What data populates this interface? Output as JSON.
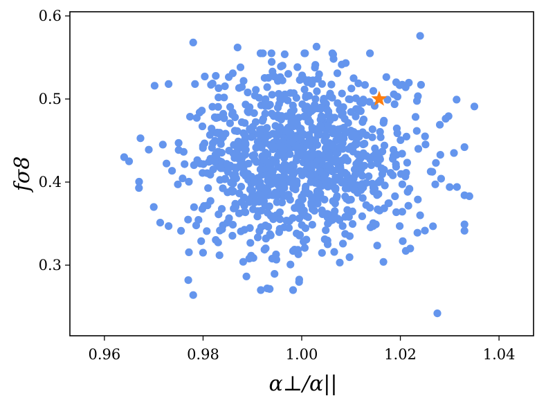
{
  "chart_data": {
    "type": "scatter",
    "title": "",
    "xlabel": "α⊥/α||",
    "ylabel": "fσ8",
    "xlim": [
      0.953,
      1.047
    ],
    "ylim": [
      0.215,
      0.605
    ],
    "xticks": [
      0.96,
      0.98,
      1.0,
      1.02,
      1.04
    ],
    "xtick_labels": [
      "0.96",
      "0.98",
      "1.00",
      "1.02",
      "1.04"
    ],
    "yticks": [
      0.3,
      0.4,
      0.5,
      0.6
    ],
    "ytick_labels": [
      "0.3",
      "0.4",
      "0.5",
      "0.6"
    ],
    "grid": false,
    "legend": "none",
    "point_color": "#6495ed",
    "marker_color": "#ff7f0e",
    "cloud": {
      "n": 1000,
      "x_mean": 1.0,
      "x_std": 0.0115,
      "y_mean": 0.425,
      "y_std": 0.055,
      "seed": 7
    },
    "outliers": [
      {
        "x": 1.024,
        "y": 0.576
      },
      {
        "x": 0.978,
        "y": 0.568
      },
      {
        "x": 1.003,
        "y": 0.563
      },
      {
        "x": 0.987,
        "y": 0.562
      },
      {
        "x": 1.035,
        "y": 0.491
      },
      {
        "x": 0.964,
        "y": 0.43
      },
      {
        "x": 0.965,
        "y": 0.425
      },
      {
        "x": 1.03,
        "y": 0.394
      },
      {
        "x": 1.034,
        "y": 0.383
      },
      {
        "x": 1.028,
        "y": 0.469
      },
      {
        "x": 1.025,
        "y": 0.455
      },
      {
        "x": 0.969,
        "y": 0.439
      },
      {
        "x": 0.973,
        "y": 0.518
      },
      {
        "x": 0.977,
        "y": 0.282
      },
      {
        "x": 0.978,
        "y": 0.264
      },
      {
        "x": 1.0275,
        "y": 0.242
      },
      {
        "x": 0.993,
        "y": 0.272
      },
      {
        "x": 0.98,
        "y": 0.315
      },
      {
        "x": 0.97,
        "y": 0.37
      },
      {
        "x": 0.973,
        "y": 0.347
      },
      {
        "x": 1.024,
        "y": 0.36
      },
      {
        "x": 1.022,
        "y": 0.32
      }
    ],
    "highlight": [
      {
        "x": 1.0157,
        "y": 0.5
      }
    ]
  }
}
